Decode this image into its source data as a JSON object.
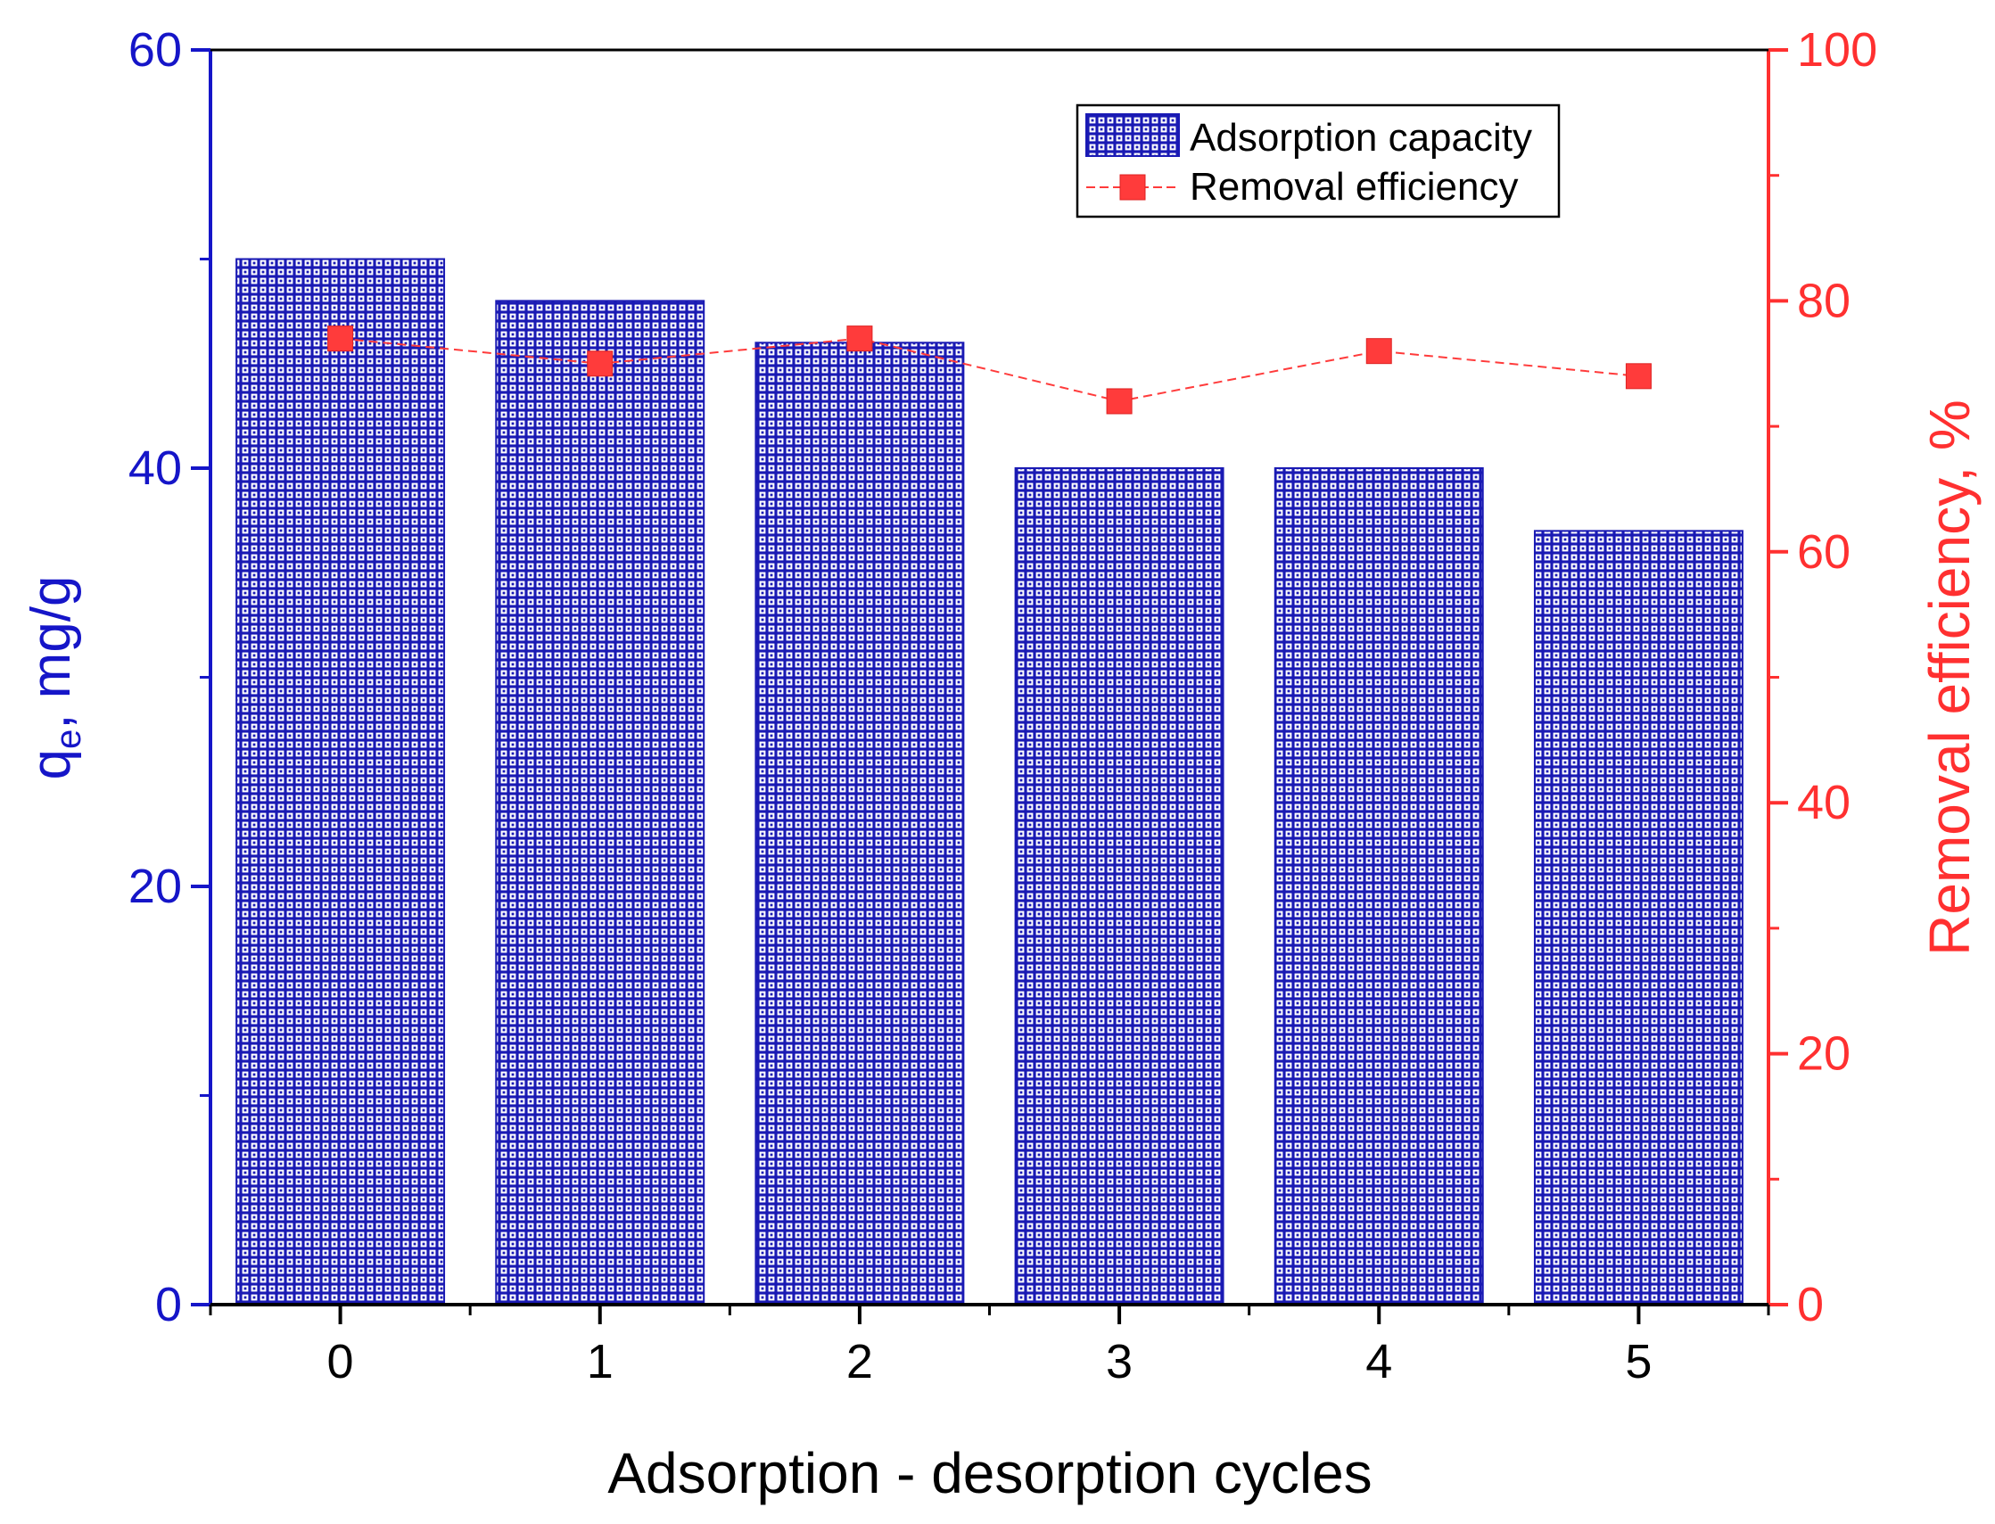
{
  "chart_data": {
    "type": "bar",
    "categories": [
      "0",
      "1",
      "2",
      "3",
      "4",
      "5"
    ],
    "xlabel": "Adsorption - desorption cycles",
    "ylabel_left_main": "q",
    "ylabel_left_sub": "e",
    "ylabel_left_rest": ", mg/g",
    "ylabel_right": "Removal efficiency, %",
    "ylim_left": [
      0,
      60
    ],
    "ylim_right": [
      0,
      100
    ],
    "yticks_left": [
      0,
      20,
      40,
      60
    ],
    "yticks_right": [
      0,
      20,
      40,
      60,
      80,
      100
    ],
    "grid": false,
    "legend_position": "top-right",
    "series": [
      {
        "name": "Adsorption capacity",
        "type": "bar",
        "axis": "left",
        "values": [
          50,
          48,
          46,
          40,
          40,
          37
        ],
        "color": "#1a1ab4"
      },
      {
        "name": "Removal efficiency",
        "type": "line",
        "axis": "right",
        "values": [
          77,
          75,
          77,
          72,
          76,
          74
        ],
        "color": "#ff3b3b",
        "marker": "square",
        "line_style": "dashed"
      }
    ],
    "colors": {
      "left_axis": "#1515c8",
      "right_axis": "#ff3030",
      "axis_black": "#000000"
    }
  }
}
